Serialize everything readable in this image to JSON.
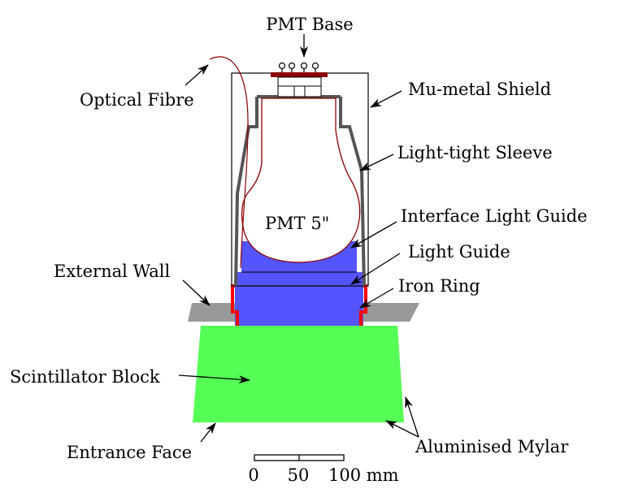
{
  "diagram": {
    "labels": {
      "pmt_base": "PMT Base",
      "optical_fibre": "Optical Fibre",
      "mu_metal_shield": "Mu-metal Shield",
      "light_tight_sleeve": "Light-tight Sleeve",
      "pmt": "PMT 5\"",
      "interface_light_guide": "Interface Light Guide",
      "light_guide": "Light Guide",
      "external_wall": "External Wall",
      "iron_ring": "Iron Ring",
      "scintillator_block": "Scintillator Block",
      "entrance_face": "Entrance Face",
      "aluminised_mylar": "Aluminised Mylar"
    },
    "scale_bar": {
      "tick_0": "0",
      "tick_50": "50",
      "tick_100": "100 mm"
    },
    "colors": {
      "scintillator": "#55ff55",
      "light_guide": "#5555ff",
      "iron_ring": "#ff0000",
      "external_wall": "#999999",
      "sleeve": "#555555",
      "pmt_outline": "#8b0000",
      "pmt_base": "#8b0000"
    }
  }
}
